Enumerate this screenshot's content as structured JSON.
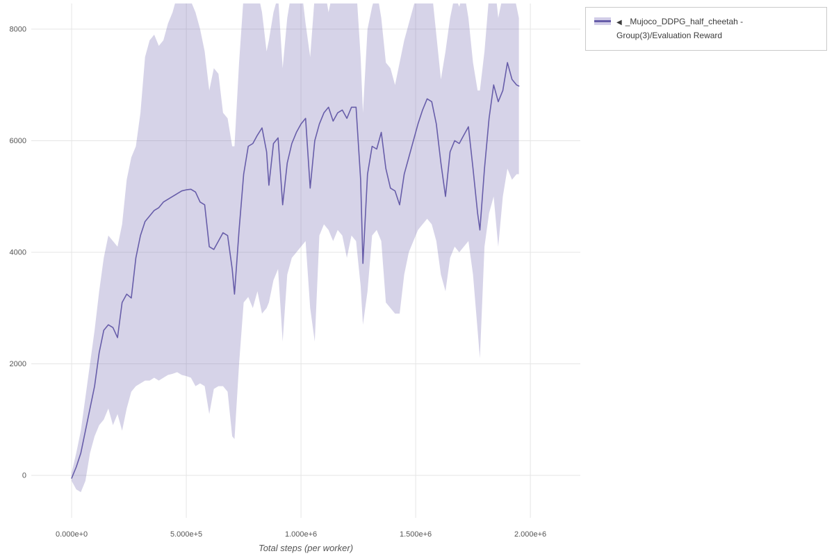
{
  "legend": {
    "toggle_icon": "◀",
    "label": "_Mujoco_DDPG_half_cheetah - Group(3)/Evaluation Reward"
  },
  "chart_data": {
    "type": "line",
    "title": "",
    "xlabel": "Total steps (per worker)",
    "ylabel": "",
    "xlim": [
      -176000,
      2218000
    ],
    "ylim": [
      -760,
      8460
    ],
    "grid": true,
    "legend_position": "top-right",
    "x_tick_values": [
      0,
      500000,
      1000000,
      1500000,
      2000000
    ],
    "x_tick_labels": [
      "0.000e+0",
      "5.000e+5",
      "1.000e+6",
      "1.500e+6",
      "2.000e+6"
    ],
    "y_tick_values": [
      0,
      2000,
      4000,
      6000,
      8000
    ],
    "y_tick_labels": [
      "0",
      "2000",
      "4000",
      "6000",
      "8000"
    ],
    "colors": {
      "line": "#675da9",
      "band": "#675da9",
      "band_light": "#d2cde8",
      "band_opacity": 0.27,
      "grid": "#e5e5e5",
      "tick_text": "#555555"
    },
    "series": [
      {
        "name": "_Mujoco_DDPG_half_cheetah - Group(3)/Evaluation Reward",
        "x_multiplier": 100000,
        "x": [
          0,
          0.2,
          0.4,
          0.6,
          0.8,
          1.0,
          1.2,
          1.4,
          1.6,
          1.8,
          2.0,
          2.2,
          2.4,
          2.6,
          2.8,
          3.0,
          3.2,
          3.4,
          3.6,
          3.8,
          4.0,
          4.2,
          4.4,
          4.6,
          4.8,
          5.0,
          5.2,
          5.4,
          5.6,
          5.8,
          6.0,
          6.2,
          6.4,
          6.6,
          6.8,
          7.0,
          7.1,
          7.3,
          7.5,
          7.7,
          7.9,
          8.1,
          8.3,
          8.5,
          8.6,
          8.8,
          9.0,
          9.2,
          9.4,
          9.6,
          9.8,
          10.0,
          10.2,
          10.4,
          10.6,
          10.8,
          11.0,
          11.2,
          11.4,
          11.6,
          11.8,
          12.0,
          12.2,
          12.4,
          12.6,
          12.7,
          12.9,
          13.1,
          13.3,
          13.5,
          13.7,
          13.9,
          14.1,
          14.3,
          14.5,
          14.7,
          14.9,
          15.1,
          15.3,
          15.5,
          15.7,
          15.9,
          16.1,
          16.3,
          16.5,
          16.7,
          16.9,
          17.1,
          17.3,
          17.5,
          17.7,
          17.8,
          18.0,
          18.2,
          18.4,
          18.6,
          18.8,
          19.0,
          19.2,
          19.4,
          19.5
        ],
        "mean": [
          -50,
          150,
          400,
          800,
          1200,
          1600,
          2200,
          2600,
          2700,
          2650,
          2470,
          3100,
          3250,
          3180,
          3900,
          4300,
          4550,
          4650,
          4750,
          4800,
          4900,
          4950,
          5000,
          5050,
          5100,
          5120,
          5130,
          5080,
          4900,
          4850,
          4100,
          4050,
          4200,
          4350,
          4300,
          3700,
          3250,
          4400,
          5400,
          5900,
          5950,
          6100,
          6230,
          5800,
          5200,
          5950,
          6050,
          4850,
          5600,
          5950,
          6150,
          6300,
          6400,
          5150,
          6000,
          6300,
          6500,
          6600,
          6350,
          6500,
          6550,
          6400,
          6600,
          6600,
          5300,
          3800,
          5400,
          5900,
          5850,
          6150,
          5500,
          5150,
          5100,
          4850,
          5400,
          5700,
          6000,
          6300,
          6550,
          6750,
          6700,
          6300,
          5600,
          5000,
          5800,
          6000,
          5950,
          6100,
          6250,
          5500,
          4700,
          4400,
          5500,
          6400,
          7000,
          6700,
          6900,
          7400,
          7100,
          7000,
          6980
        ],
        "lower": [
          -100,
          -250,
          -300,
          -100,
          400,
          700,
          900,
          1000,
          1200,
          900,
          1100,
          800,
          1200,
          1500,
          1600,
          1650,
          1700,
          1700,
          1750,
          1700,
          1750,
          1800,
          1820,
          1850,
          1800,
          1780,
          1750,
          1600,
          1650,
          1600,
          1100,
          1550,
          1600,
          1600,
          1500,
          700,
          650,
          2000,
          3100,
          3200,
          3000,
          3300,
          2900,
          3000,
          3100,
          3500,
          3700,
          2400,
          3600,
          3900,
          4000,
          4100,
          4200,
          3000,
          2400,
          4300,
          4500,
          4400,
          4200,
          4400,
          4300,
          3900,
          4300,
          4200,
          3400,
          2700,
          3300,
          4300,
          4400,
          4200,
          3100,
          3000,
          2900,
          2900,
          3600,
          4000,
          4200,
          4400,
          4500,
          4600,
          4500,
          4200,
          3600,
          3300,
          3900,
          4100,
          4000,
          4100,
          4200,
          3600,
          2600,
          2100,
          4100,
          4700,
          5000,
          4100,
          5000,
          5500,
          5300,
          5400,
          5400
        ],
        "upper": [
          50,
          400,
          800,
          1400,
          2000,
          2600,
          3300,
          3900,
          4300,
          4200,
          4100,
          4500,
          5300,
          5700,
          5900,
          6500,
          7500,
          7800,
          7900,
          7700,
          7800,
          8100,
          8300,
          8600,
          8800,
          8700,
          8500,
          8300,
          8000,
          7600,
          6900,
          7300,
          7200,
          6500,
          6400,
          5900,
          5900,
          7400,
          8600,
          9000,
          9000,
          8700,
          8300,
          7600,
          7800,
          8300,
          8600,
          7300,
          8200,
          8700,
          9000,
          8800,
          8100,
          7500,
          8600,
          9000,
          8800,
          8300,
          8700,
          8600,
          8500,
          8800,
          8700,
          8800,
          7500,
          6500,
          8000,
          8400,
          8700,
          8200,
          7400,
          7300,
          7000,
          7400,
          7800,
          8100,
          8400,
          8700,
          9000,
          8900,
          8700,
          7900,
          7100,
          7600,
          8200,
          8600,
          8400,
          8700,
          8200,
          7400,
          6900,
          6900,
          7600,
          8600,
          9000,
          8200,
          8600,
          9000,
          8800,
          8400,
          8200
        ]
      }
    ]
  }
}
